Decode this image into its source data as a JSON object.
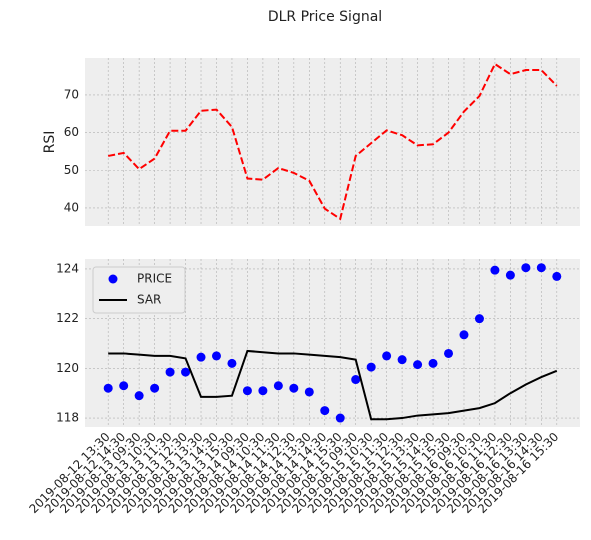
{
  "chart_data": [
    {
      "type": "line",
      "title": "DLR Price Signal",
      "ylabel": "RSI",
      "ylim": [
        35.2,
        79.8
      ],
      "yticks": [
        40,
        50,
        60,
        70
      ],
      "grid": true,
      "series": [
        {
          "name": "RSI",
          "color": "#ff0000",
          "style": "dashed",
          "values": [
            53.8,
            54.6,
            50.3,
            53.1,
            60.5,
            60.5,
            65.8,
            66.1,
            61.5,
            47.8,
            47.5,
            50.6,
            49.3,
            47.2,
            39.8,
            37.1,
            53.8,
            57.2,
            60.6,
            59.3,
            56.6,
            56.9,
            60.0,
            65.6,
            69.7,
            78.2,
            75.5,
            76.6,
            76.6,
            72.4
          ]
        }
      ]
    },
    {
      "type": "line",
      "categories": [
        "2019-08-12 13:30",
        "2019-08-12 14:30",
        "2019-08-13 09:30",
        "2019-08-13 10:30",
        "2019-08-13 11:30",
        "2019-08-13 12:30",
        "2019-08-13 13:30",
        "2019-08-13 14:30",
        "2019-08-13 15:30",
        "2019-08-14 09:30",
        "2019-08-14 10:30",
        "2019-08-14 11:30",
        "2019-08-14 12:30",
        "2019-08-14 13:30",
        "2019-08-14 14:30",
        "2019-08-14 15:30",
        "2019-08-15 09:30",
        "2019-08-15 10:30",
        "2019-08-15 11:30",
        "2019-08-15 12:30",
        "2019-08-15 13:30",
        "2019-08-15 14:30",
        "2019-08-15 15:30",
        "2019-08-16 09:30",
        "2019-08-16 10:30",
        "2019-08-16 11:30",
        "2019-08-16 12:30",
        "2019-08-16 13:30",
        "2019-08-16 14:30",
        "2019-08-16 15:30"
      ],
      "ylim": [
        117.64,
        124.4
      ],
      "yticks": [
        118,
        120,
        122,
        124
      ],
      "grid": true,
      "legend": "upper left",
      "series": [
        {
          "name": "PRICE",
          "color": "#0000ff",
          "style": "marker",
          "values": [
            119.2,
            119.3,
            118.9,
            119.2,
            119.85,
            119.85,
            120.45,
            120.5,
            120.2,
            119.1,
            119.1,
            119.3,
            119.2,
            119.05,
            118.3,
            118.0,
            119.55,
            120.05,
            120.5,
            120.35,
            120.15,
            120.2,
            120.6,
            121.35,
            122.0,
            123.95,
            123.75,
            124.05,
            124.05,
            123.7
          ]
        },
        {
          "name": "SAR",
          "color": "#000000",
          "style": "solid",
          "values": [
            120.6,
            120.6,
            120.55,
            120.5,
            120.5,
            120.4,
            118.85,
            118.85,
            118.9,
            120.7,
            120.65,
            120.6,
            120.6,
            120.55,
            120.5,
            120.45,
            120.35,
            117.95,
            117.95,
            118.0,
            118.1,
            118.15,
            118.2,
            118.3,
            118.4,
            118.6,
            119.0,
            119.35,
            119.65,
            119.9
          ]
        }
      ]
    }
  ]
}
